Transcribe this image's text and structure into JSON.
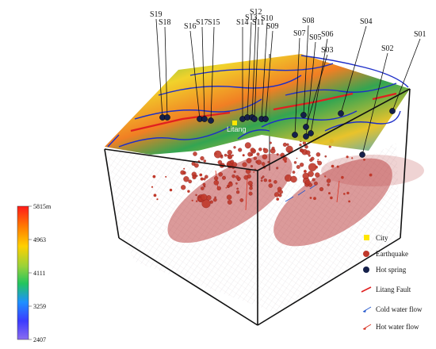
{
  "stations": [
    {
      "id": "S19"
    },
    {
      "id": "S18"
    },
    {
      "id": "S16"
    },
    {
      "id": "S17"
    },
    {
      "id": "S15"
    },
    {
      "id": "S14"
    },
    {
      "id": "S13"
    },
    {
      "id": "S12"
    },
    {
      "id": "S11"
    },
    {
      "id": "S10"
    },
    {
      "id": "S09"
    },
    {
      "id": "S08"
    },
    {
      "id": "S07"
    },
    {
      "id": "S05"
    },
    {
      "id": "S06"
    },
    {
      "id": "S03"
    },
    {
      "id": "S04"
    },
    {
      "id": "S02"
    },
    {
      "id": "S01"
    }
  ],
  "city": {
    "name": "Litang"
  },
  "colorbar": {
    "unit": "m",
    "ticks": [
      "5815m",
      "4963",
      "4111",
      "3259",
      "2407"
    ],
    "colors": [
      "#ff1a1a",
      "#ff8c00",
      "#ffd700",
      "#9acd32",
      "#22c55e",
      "#1e90ff",
      "#3b3bff",
      "#7b68ee"
    ]
  },
  "legend": {
    "items": [
      {
        "label": "City",
        "symbol": "square",
        "color": "#ffe600"
      },
      {
        "label": "Earthquake",
        "symbol": "circle",
        "color": "#c0392b"
      },
      {
        "label": "Hot spring",
        "symbol": "circle",
        "color": "#15204a"
      },
      {
        "label": "Litang Fault",
        "symbol": "line",
        "color": "#e02020"
      },
      {
        "label": "Cold water flow",
        "symbol": "arrow",
        "color": "#2255cc"
      },
      {
        "label": "Hot water flow",
        "symbol": "arrow",
        "color": "#d83020"
      }
    ]
  }
}
